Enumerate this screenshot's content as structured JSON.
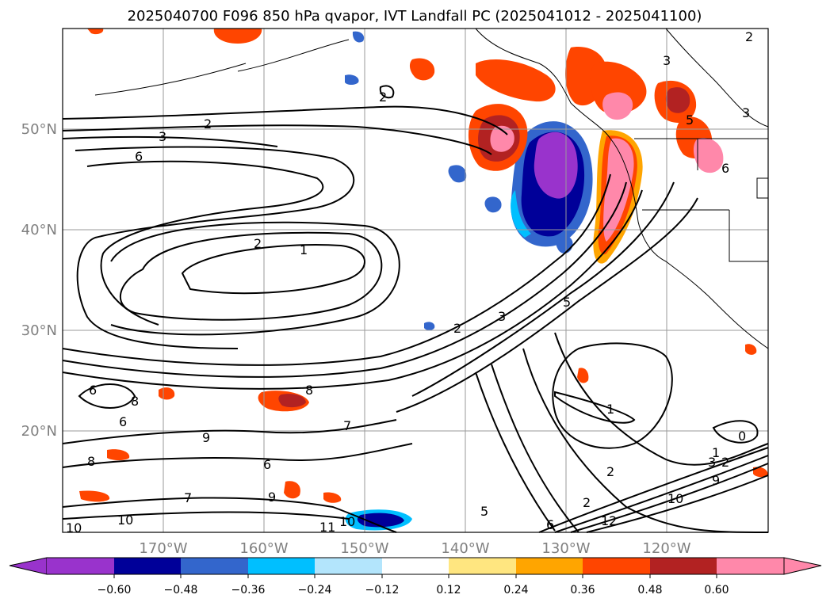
{
  "title": "2025040700 F096 850 hPa qvapor, IVT Landfall PC (2025041012 - 2025041100)",
  "map": {
    "lat_labels": [
      "50°N",
      "40°N",
      "30°N",
      "20°N"
    ],
    "lon_labels": [
      "170°W",
      "160°W",
      "150°W",
      "140°W",
      "130°W",
      "120°W"
    ],
    "contour_labels": [
      "2",
      "3",
      "6",
      "2",
      "1",
      "2",
      "3",
      "8",
      "6",
      "8",
      "6",
      "9",
      "7",
      "6",
      "8",
      "7",
      "9",
      "10",
      "10",
      "10",
      "11",
      "5",
      "6",
      "12",
      "1",
      "2",
      "1",
      "2",
      "3",
      "9",
      "10",
      "0",
      "2",
      "5",
      "3",
      "2",
      "3",
      "5",
      "6",
      "2"
    ],
    "colors": {
      "land_line": "#000000",
      "grid": "#9a9a9a"
    }
  },
  "colorbar": {
    "ticks": [
      "−0.60",
      "−0.48",
      "−0.36",
      "−0.24",
      "−0.12",
      "0.12",
      "0.24",
      "0.36",
      "0.48",
      "0.60"
    ],
    "colors": [
      "#9933cc",
      "#000099",
      "#3366cc",
      "#00bfff",
      "#b3e5fc",
      "#ffffff",
      "#ffe680",
      "#ffa500",
      "#ff4500",
      "#b22222",
      "#ff88aa"
    ]
  }
}
